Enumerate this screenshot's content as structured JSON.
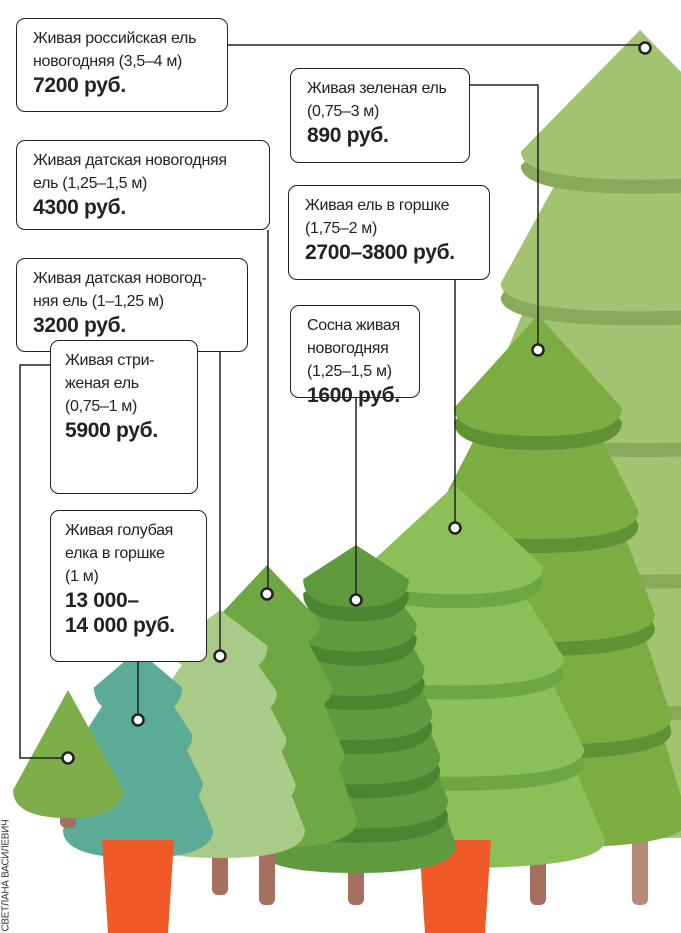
{
  "items": [
    {
      "lines": [
        "Живая российская ель",
        "новогодняя (3,5–4 м)"
      ],
      "price": [
        "7200 руб."
      ]
    },
    {
      "lines": [
        "Живая датская новогодняя",
        "ель (1,25–1,5 м)"
      ],
      "price": [
        "4300 руб."
      ]
    },
    {
      "lines": [
        "Живая датская новогод-",
        "няя ель (1–1,25 м)"
      ],
      "price": [
        "3200 руб."
      ]
    },
    {
      "lines": [
        "Живая стри-",
        "женая ель",
        "(0,75–1  м)"
      ],
      "price": [
        "5900 руб."
      ]
    },
    {
      "lines": [
        "Живая голубая",
        "елка в горшке",
        "(1 м)"
      ],
      "price": [
        "13 000–",
        "14 000 руб."
      ]
    },
    {
      "lines": [
        "Сосна живая",
        "новогодняя",
        "(1,25–1,5 м)"
      ],
      "price": [
        "1600 руб."
      ]
    },
    {
      "lines": [
        "Живая ель в горшке",
        "(1,75–2 м)"
      ],
      "price": [
        "2700–3800 руб."
      ]
    },
    {
      "lines": [
        "Живая зеленая ель",
        "(0,75–3 м)"
      ],
      "price": [
        "890 руб."
      ]
    }
  ],
  "credit": "СВЕТЛАНА ВАСИЛЕВИЧ"
}
